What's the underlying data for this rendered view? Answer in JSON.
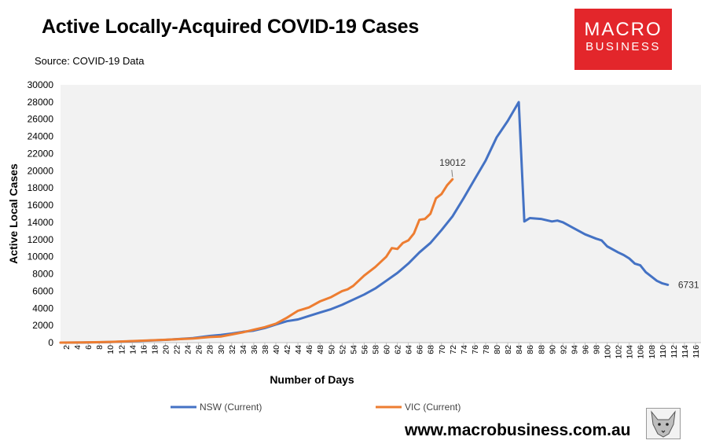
{
  "header": {
    "title": "Active Locally-Acquired COVID-19 Cases",
    "source": "Source: COVID-19 Data"
  },
  "brand": {
    "logo_line1": "MACRO",
    "logo_line2": "BUSINESS",
    "website": "www.macrobusiness.com.au",
    "logo_color": "#e3262b"
  },
  "chart_data": {
    "type": "line",
    "title": "Active Locally-Acquired COVID-19 Cases",
    "xlabel": "Number of Days",
    "ylabel": "Active Local Cases",
    "xlim": [
      1,
      117
    ],
    "ylim": [
      0,
      30000
    ],
    "yticks": [
      0,
      2000,
      4000,
      6000,
      8000,
      10000,
      12000,
      14000,
      16000,
      18000,
      20000,
      22000,
      24000,
      26000,
      28000,
      30000
    ],
    "xticks": [
      2,
      4,
      6,
      8,
      10,
      12,
      14,
      16,
      18,
      20,
      22,
      24,
      26,
      28,
      30,
      32,
      34,
      36,
      38,
      40,
      42,
      44,
      46,
      48,
      50,
      52,
      54,
      56,
      58,
      60,
      62,
      64,
      66,
      68,
      70,
      72,
      74,
      76,
      78,
      80,
      82,
      84,
      86,
      88,
      90,
      92,
      94,
      96,
      98,
      100,
      102,
      104,
      106,
      108,
      110,
      112,
      114,
      116
    ],
    "grid": false,
    "legend_position": "bottom",
    "series": [
      {
        "name": "NSW (Current)",
        "color": "#4472c4",
        "x": [
          1,
          5,
          10,
          15,
          20,
          25,
          28,
          30,
          32,
          34,
          36,
          38,
          40,
          42,
          44,
          46,
          48,
          50,
          52,
          54,
          56,
          58,
          60,
          62,
          64,
          66,
          68,
          70,
          72,
          74,
          76,
          78,
          80,
          82,
          84,
          85,
          86,
          88,
          90,
          91,
          92,
          94,
          96,
          98,
          99,
          100,
          102,
          103,
          104,
          105,
          106,
          107,
          108,
          109,
          110,
          111
        ],
        "values": [
          0,
          10,
          60,
          180,
          320,
          530,
          780,
          900,
          1050,
          1250,
          1400,
          1700,
          2100,
          2500,
          2700,
          3100,
          3500,
          3900,
          4400,
          5000,
          5600,
          6300,
          7200,
          8100,
          9200,
          10500,
          11600,
          13100,
          14700,
          16800,
          19000,
          21200,
          23900,
          25800,
          28000,
          14100,
          14500,
          14400,
          14100,
          14200,
          14000,
          13300,
          12600,
          12100,
          11900,
          11200,
          10500,
          10200,
          9800,
          9200,
          9000,
          8200,
          7700,
          7200,
          6900,
          6731
        ]
      },
      {
        "name": "VIC (Current)",
        "color": "#ed7d31",
        "x": [
          1,
          5,
          10,
          15,
          20,
          25,
          28,
          30,
          32,
          34,
          36,
          38,
          40,
          42,
          43,
          44,
          46,
          48,
          50,
          52,
          53,
          54,
          56,
          58,
          60,
          61,
          62,
          63,
          64,
          65,
          66,
          67,
          68,
          69,
          70,
          71,
          72
        ],
        "values": [
          0,
          20,
          80,
          200,
          330,
          480,
          650,
          700,
          950,
          1200,
          1500,
          1800,
          2200,
          2900,
          3300,
          3700,
          4100,
          4800,
          5300,
          6000,
          6200,
          6600,
          7800,
          8800,
          10000,
          11000,
          10900,
          11600,
          11900,
          12700,
          14300,
          14400,
          15000,
          16800,
          17300,
          18300,
          19012
        ]
      }
    ],
    "annotations": [
      {
        "series": "VIC (Current)",
        "text": "19012"
      },
      {
        "series": "NSW (Current)",
        "text": "6731"
      }
    ]
  }
}
